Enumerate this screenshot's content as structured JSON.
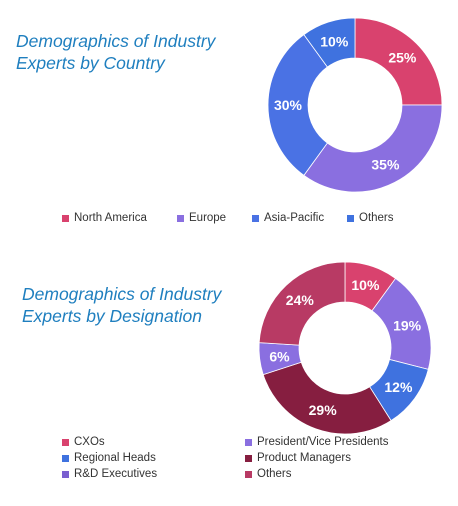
{
  "chart_data": [
    {
      "type": "pie",
      "title": "Demographics of Industry\nExperts by Country",
      "categories": [
        "North America",
        "Europe",
        "Asia-Pacific",
        "Others"
      ],
      "values": [
        25,
        35,
        30,
        10
      ],
      "value_labels": [
        "25%",
        "35%",
        "30%",
        "10%"
      ],
      "colors": [
        "#d9426e",
        "#8a6fe0",
        "#4a72e4",
        "#3f72df"
      ],
      "legend_placement": "bottom",
      "legend_entries": [
        "North America",
        "Europe",
        "Asia-Pacific",
        "Others"
      ],
      "legend_colors": [
        "#d9426e",
        "#8a6fe0",
        "#4a72e4",
        "#3f72df"
      ]
    },
    {
      "type": "pie",
      "title": "Demographics of Industry\nExperts by Designation",
      "categories": [
        "CXOs",
        "President/Vice Presidents",
        "Regional Heads",
        "Product Managers",
        "R&D Executives",
        "Others"
      ],
      "values": [
        10,
        19,
        12,
        29,
        6,
        24
      ],
      "value_labels": [
        "10%",
        "19%",
        "12%",
        "29%",
        "6%",
        "24%"
      ],
      "colors": [
        "#d9426e",
        "#8a6fe0",
        "#3f72df",
        "#861e40",
        "#8a6fe0",
        "#b83a64"
      ],
      "legend_placement": "bottom",
      "legend_entries": [
        "CXOs",
        "President/Vice Presidents",
        "Regional Heads",
        "Product Managers",
        "R&D Executives",
        "Others"
      ],
      "legend_colors": [
        "#d9426e",
        "#8a6fe0",
        "#3f72df",
        "#861e40",
        "#7a5fd0",
        "#b83a64"
      ]
    }
  ]
}
